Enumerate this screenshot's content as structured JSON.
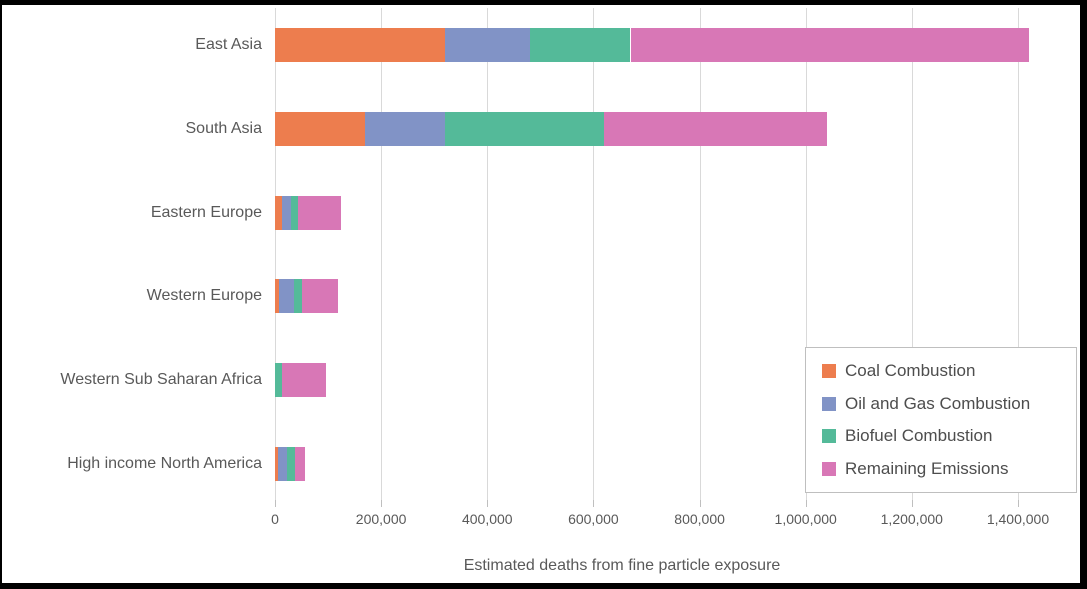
{
  "chart_data": {
    "type": "bar",
    "orientation": "horizontal",
    "stacked": true,
    "title": "",
    "xlabel": "Estimated deaths from fine particle exposure",
    "ylabel": "",
    "xlim": [
      0,
      1400000
    ],
    "grid": true,
    "legend_position": "inside-bottom-right",
    "xtick_values": [
      0,
      200000,
      400000,
      600000,
      800000,
      1000000,
      1200000,
      1400000
    ],
    "xtick_labels": [
      "0",
      "200,000",
      "400,000",
      "600,000",
      "800,000",
      "1,000,000",
      "1,200,000",
      "1,400,000"
    ],
    "categories": [
      "East Asia",
      "South Asia",
      "Eastern Europe",
      "Western Europe",
      "Western Sub Saharan Africa",
      "High income North America"
    ],
    "series": [
      {
        "name": "Coal Combustion",
        "color": "#ED7D4E",
        "values": [
          320000,
          170000,
          14000,
          7000,
          0,
          5000
        ]
      },
      {
        "name": "Oil and Gas Combustion",
        "color": "#8193C6",
        "values": [
          160000,
          150000,
          16000,
          28000,
          0,
          17000
        ]
      },
      {
        "name": "Biofuel Combustion",
        "color": "#54BA99",
        "values": [
          190000,
          300000,
          14000,
          15000,
          14000,
          15000
        ]
      },
      {
        "name": "Remaining Emissions",
        "color": "#D877B6",
        "values": [
          750000,
          420000,
          81000,
          68000,
          83000,
          20000
        ]
      }
    ]
  },
  "styles": {
    "text_color": "#595959",
    "grid_color": "#d9d9d9",
    "legend_border_color": "#bfbfbf",
    "frame_color": "#000000",
    "background_color": "#ffffff"
  }
}
